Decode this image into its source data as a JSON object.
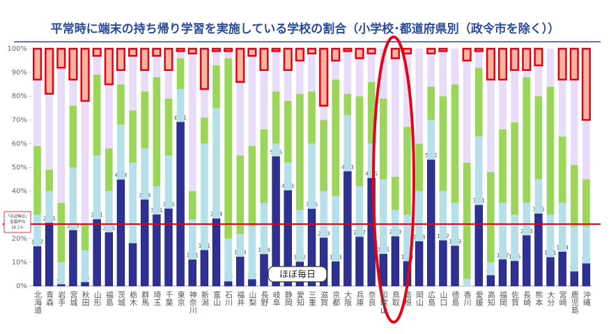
{
  "chart_data": {
    "type": "stacked_bar",
    "title": "平常時に端末の持ち帰り学習を実施している学校の割合（小学校･都道府県別（政令市を除く））",
    "categories": [
      "北海道",
      "青森",
      "岩手",
      "宮城",
      "秋田",
      "山形",
      "福島",
      "茨城",
      "栃木",
      "群馬",
      "埼玉",
      "千葉",
      "東京",
      "神奈川",
      "新潟",
      "富山",
      "石川",
      "福井",
      "山梨",
      "長野",
      "岐阜",
      "静岡",
      "愛知",
      "三重",
      "滋賀",
      "京都",
      "大阪",
      "兵庫",
      "奈良",
      "和歌山",
      "鳥取",
      "島根",
      "岡山",
      "広島",
      "山口",
      "徳島",
      "香川",
      "愛媛",
      "高知",
      "福岡",
      "佐賀",
      "長崎",
      "熊本",
      "大分",
      "宮崎",
      "鹿児島",
      "沖縄"
    ],
    "series": [
      {
        "name": "ほぼ毎日",
        "color": "#2e3192",
        "values": [
          16.7,
          26.6,
          0.7,
          23.5,
          1.6,
          28.1,
          22.6,
          44.8,
          18.0,
          36.4,
          30.1,
          32.6,
          69.1,
          11.1,
          15.1,
          28.4,
          1.9,
          12.3,
          2.8,
          13.4,
          54.6,
          40.3,
          10.2,
          32.5,
          20.3,
          10.3,
          48.3,
          20.7,
          45.5,
          13.5,
          20.9,
          10.4,
          18.8,
          53.2,
          19.2,
          16.9,
          0.0,
          34.1,
          4.5,
          11.2,
          10.5,
          21.3,
          30.5,
          12.1,
          14.4,
          6.1,
          9.5
        ]
      },
      {
        "color": "#b7dfe9",
        "values": [
          13.3,
          13.4,
          9.3,
          26.5,
          13.4,
          26.9,
          17.4,
          23.2,
          34,
          21.6,
          11.9,
          22.4,
          13.9,
          16.9,
          44.9,
          46.6,
          18.1,
          9.7,
          22.2,
          21.6,
          5.4,
          11.7,
          21.8,
          27.5,
          19.7,
          27.7,
          23.7,
          21.3,
          14.5,
          31.5,
          11.1,
          19.6,
          21.2,
          16.8,
          20.8,
          18.1,
          3,
          28.9,
          5.5,
          23.8,
          19.5,
          13.7,
          14.5,
          17.9,
          20.6,
          18.9,
          15.5
        ]
      },
      {
        "color": "#9bd55a",
        "values": [
          29,
          9,
          25,
          26,
          11,
          34,
          18,
          17,
          22,
          24,
          46,
          24,
          13,
          12,
          11,
          18,
          76,
          33,
          34,
          31,
          22,
          26,
          49,
          22,
          30,
          49,
          9,
          38,
          26,
          34,
          14,
          37,
          20,
          14,
          40,
          50,
          49,
          29,
          38,
          31,
          39,
          53,
          35,
          54,
          28,
          26,
          20
        ]
      },
      {
        "color": "#e8dcf8",
        "values": [
          28,
          32,
          57,
          11,
          52,
          8,
          27,
          6,
          23,
          9,
          9,
          12,
          3,
          58,
          12,
          6,
          3,
          31,
          38,
          25,
          17,
          13,
          14,
          16,
          6,
          8,
          18,
          16,
          12,
          21,
          50,
          31,
          40,
          14,
          19,
          15,
          43,
          7,
          39,
          21,
          22,
          3,
          13,
          16,
          24,
          36,
          25
        ]
      },
      {
        "color": "#f7b4a0",
        "values": [
          13,
          19,
          8,
          13,
          22,
          3,
          15,
          9,
          3,
          9,
          3,
          9,
          1,
          2,
          17,
          1,
          1,
          14,
          3,
          9,
          1,
          9,
          5,
          2,
          24,
          5,
          1,
          4,
          2,
          0,
          4,
          2,
          0,
          2,
          1,
          0,
          5,
          1,
          13,
          13,
          9,
          9,
          7,
          0,
          13,
          13,
          30
        ]
      }
    ],
    "ylim": [
      0,
      100
    ],
    "yticks": [
      {
        "value": 0,
        "label": "0%"
      },
      {
        "value": 10,
        "label": "10%"
      },
      {
        "value": 20,
        "label": "20%"
      },
      {
        "value": 30,
        "label": "30%"
      },
      {
        "value": 40,
        "label": "40%"
      },
      {
        "value": 50,
        "label": "50%"
      },
      {
        "value": 60,
        "label": "60%"
      },
      {
        "value": 70,
        "label": "70%"
      },
      {
        "value": 80,
        "label": "80%"
      },
      {
        "value": 90,
        "label": "90%"
      },
      {
        "value": 100,
        "label": "100%"
      }
    ],
    "average": {
      "value": 26.1,
      "label": [
        "「ほぼ毎日」",
        "全国平均",
        "26.1%"
      ]
    },
    "series_note": "ほぼ毎日"
  }
}
